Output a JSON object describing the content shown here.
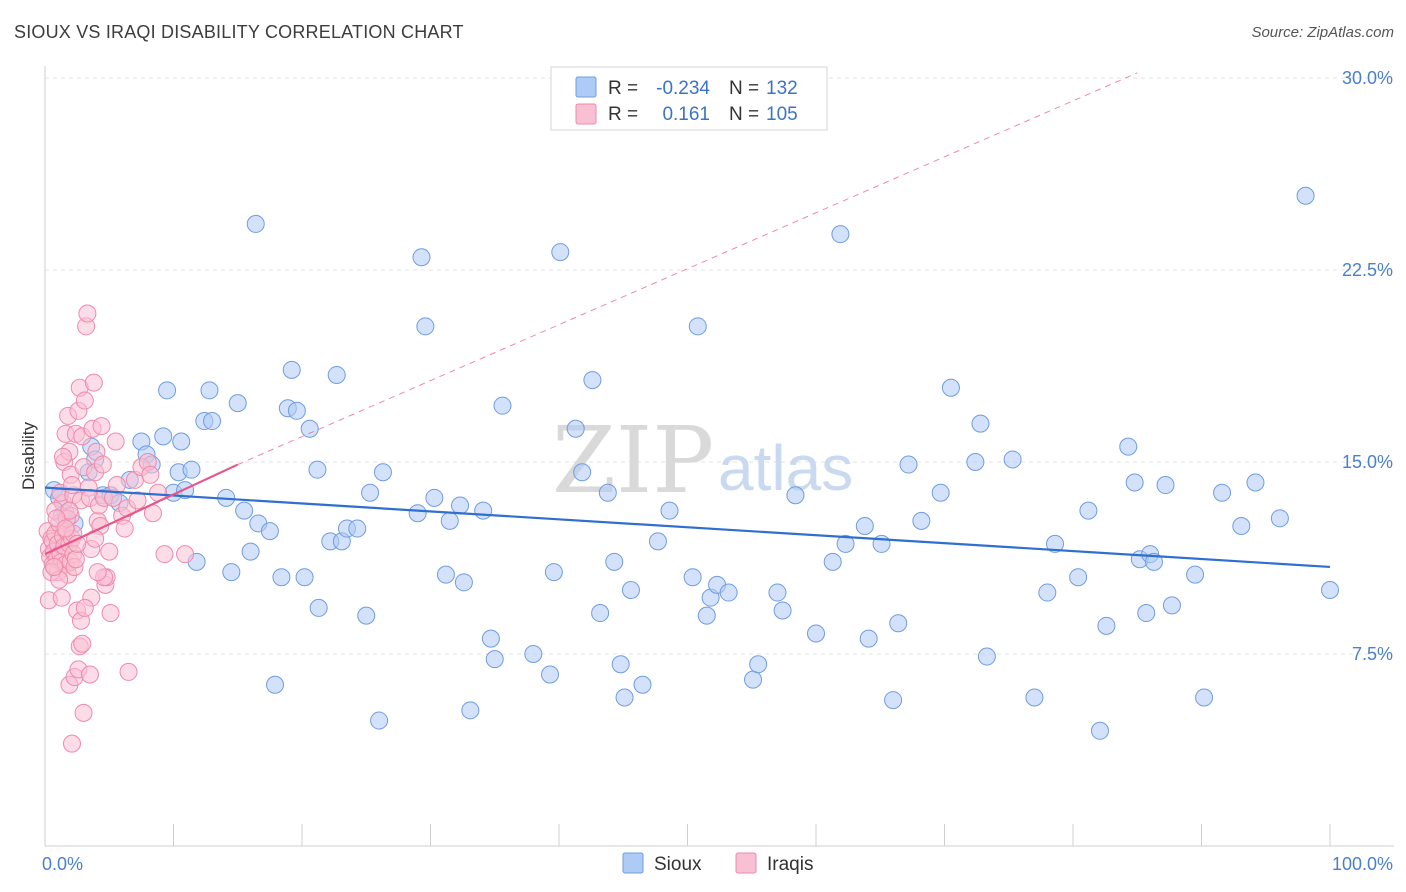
{
  "title": "SIOUX VS IRAQI DISABILITY CORRELATION CHART",
  "source": "Source: ZipAtlas.com",
  "watermark": {
    "zip": "ZIP",
    "atlas": "atlas"
  },
  "legend": {
    "rows": [
      {
        "r_label": "R =",
        "r_value": "-0.234",
        "n_label": "N =",
        "n_value": "132",
        "color": "#aecbf5",
        "stroke": "#6f9de0"
      },
      {
        "r_label": "R =",
        "r_value": "0.161",
        "n_label": "N =",
        "n_value": "105",
        "color": "#f9bfd2",
        "stroke": "#ef8aab"
      }
    ]
  },
  "bottom_legend": [
    {
      "label": "Sioux",
      "color": "#aecbf5",
      "stroke": "#6f9de0"
    },
    {
      "label": "Iraqis",
      "color": "#f9bfd2",
      "stroke": "#ef8aab"
    }
  ],
  "chart_data": {
    "type": "scatter",
    "xlabel": "",
    "ylabel": "Disability",
    "xlim": [
      0,
      100
    ],
    "ylim": [
      0,
      30
    ],
    "x_tick_labels": [
      {
        "value": 0,
        "label": "0.0%"
      },
      {
        "value": 100,
        "label": "100.0%"
      }
    ],
    "y_tick_labels": [
      {
        "value": 7.5,
        "label": "7.5%"
      },
      {
        "value": 15,
        "label": "15.0%"
      },
      {
        "value": 22.5,
        "label": "22.5%"
      },
      {
        "value": 30,
        "label": "30.0%"
      }
    ],
    "grid": true,
    "series": [
      {
        "name": "Sioux",
        "color": "#aecbf5",
        "stroke": "#6f9de0",
        "trend": {
          "x": [
            0,
            100
          ],
          "y": [
            14.0,
            10.9
          ],
          "color": "#2f6fcf"
        },
        "points": [
          [
            0.7,
            13.9
          ],
          [
            1.1,
            13.6
          ],
          [
            1.6,
            13.0
          ],
          [
            2.3,
            12.6
          ],
          [
            3.4,
            14.6
          ],
          [
            3.6,
            15.6
          ],
          [
            3.9,
            15.1
          ],
          [
            4.5,
            13.7
          ],
          [
            5.1,
            13.7
          ],
          [
            5.8,
            13.4
          ],
          [
            6.6,
            14.3
          ],
          [
            7.5,
            15.8
          ],
          [
            7.9,
            15.3
          ],
          [
            8.3,
            14.9
          ],
          [
            9.2,
            16.0
          ],
          [
            9.5,
            17.8
          ],
          [
            10.0,
            13.8
          ],
          [
            10.4,
            14.6
          ],
          [
            10.6,
            15.8
          ],
          [
            11.4,
            14.7
          ],
          [
            11.8,
            11.1
          ],
          [
            12.4,
            16.6
          ],
          [
            12.8,
            17.8
          ],
          [
            13.0,
            16.6
          ],
          [
            14.1,
            13.6
          ],
          [
            14.5,
            10.7
          ],
          [
            15.0,
            17.3
          ],
          [
            15.5,
            13.1
          ],
          [
            16.0,
            11.5
          ],
          [
            16.4,
            24.3
          ],
          [
            16.6,
            12.6
          ],
          [
            17.5,
            12.3
          ],
          [
            17.9,
            6.3
          ],
          [
            18.4,
            10.5
          ],
          [
            18.9,
            17.1
          ],
          [
            19.2,
            18.6
          ],
          [
            19.6,
            17.0
          ],
          [
            20.2,
            10.5
          ],
          [
            20.6,
            16.3
          ],
          [
            21.2,
            14.7
          ],
          [
            21.3,
            9.3
          ],
          [
            22.2,
            11.9
          ],
          [
            22.7,
            18.4
          ],
          [
            23.1,
            11.9
          ],
          [
            23.5,
            12.4
          ],
          [
            24.3,
            12.4
          ],
          [
            25.0,
            9.0
          ],
          [
            25.3,
            13.8
          ],
          [
            26.0,
            4.9
          ],
          [
            26.3,
            14.6
          ],
          [
            29.0,
            13.0
          ],
          [
            29.3,
            23.0
          ],
          [
            29.6,
            20.3
          ],
          [
            30.3,
            13.6
          ],
          [
            31.2,
            10.6
          ],
          [
            31.5,
            12.7
          ],
          [
            32.3,
            13.3
          ],
          [
            32.6,
            10.3
          ],
          [
            33.1,
            5.3
          ],
          [
            34.1,
            13.1
          ],
          [
            34.7,
            8.1
          ],
          [
            35.0,
            7.3
          ],
          [
            35.6,
            17.2
          ],
          [
            38.0,
            7.5
          ],
          [
            39.3,
            6.7
          ],
          [
            39.6,
            10.7
          ],
          [
            40.1,
            23.2
          ],
          [
            41.3,
            16.3
          ],
          [
            41.8,
            14.6
          ],
          [
            42.6,
            18.2
          ],
          [
            43.2,
            9.1
          ],
          [
            43.8,
            13.8
          ],
          [
            44.3,
            11.1
          ],
          [
            44.8,
            7.1
          ],
          [
            45.1,
            5.8
          ],
          [
            45.6,
            10.0
          ],
          [
            46.5,
            6.3
          ],
          [
            47.7,
            11.9
          ],
          [
            48.6,
            13.1
          ],
          [
            50.4,
            10.5
          ],
          [
            50.8,
            20.3
          ],
          [
            51.5,
            9.0
          ],
          [
            51.8,
            9.7
          ],
          [
            52.3,
            10.2
          ],
          [
            53.2,
            9.9
          ],
          [
            55.1,
            6.5
          ],
          [
            55.5,
            7.1
          ],
          [
            57.0,
            9.9
          ],
          [
            57.4,
            9.2
          ],
          [
            58.4,
            13.7
          ],
          [
            60.0,
            8.3
          ],
          [
            61.3,
            11.1
          ],
          [
            61.9,
            23.9
          ],
          [
            62.3,
            11.8
          ],
          [
            63.8,
            12.5
          ],
          [
            64.1,
            8.1
          ],
          [
            65.1,
            11.8
          ],
          [
            66.0,
            5.7
          ],
          [
            66.4,
            8.7
          ],
          [
            67.2,
            14.9
          ],
          [
            68.2,
            12.7
          ],
          [
            69.7,
            13.8
          ],
          [
            70.5,
            17.9
          ],
          [
            72.4,
            15.0
          ],
          [
            72.8,
            16.5
          ],
          [
            73.3,
            7.4
          ],
          [
            75.3,
            15.1
          ],
          [
            77.0,
            5.8
          ],
          [
            78.0,
            9.9
          ],
          [
            78.6,
            11.8
          ],
          [
            80.4,
            10.5
          ],
          [
            81.2,
            13.1
          ],
          [
            82.1,
            4.5
          ],
          [
            82.6,
            8.6
          ],
          [
            84.3,
            15.6
          ],
          [
            84.8,
            14.2
          ],
          [
            85.2,
            11.2
          ],
          [
            85.7,
            9.1
          ],
          [
            86.0,
            11.4
          ],
          [
            86.3,
            11.1
          ],
          [
            87.2,
            14.1
          ],
          [
            87.7,
            9.4
          ],
          [
            89.5,
            10.6
          ],
          [
            90.2,
            5.8
          ],
          [
            91.6,
            13.8
          ],
          [
            93.1,
            12.5
          ],
          [
            94.2,
            14.2
          ],
          [
            96.1,
            12.8
          ],
          [
            98.1,
            25.4
          ],
          [
            100.0,
            10.0
          ],
          [
            1.3,
            12.9
          ],
          [
            10.9,
            13.9
          ]
        ]
      },
      {
        "name": "Iraqis",
        "color": "#f9bfd2",
        "stroke": "#ef8aab",
        "trend": {
          "x": [
            0,
            15
          ],
          "y": [
            11.4,
            14.9
          ],
          "color": "#e7558b"
        },
        "trend_extended": {
          "x": [
            15,
            85
          ],
          "y": [
            14.9,
            30.2
          ]
        },
        "points": [
          [
            0.2,
            12.3
          ],
          [
            0.3,
            11.6
          ],
          [
            0.4,
            11.3
          ],
          [
            0.5,
            12.0
          ],
          [
            0.6,
            11.9
          ],
          [
            0.6,
            11.0
          ],
          [
            0.7,
            11.5
          ],
          [
            0.8,
            12.2
          ],
          [
            0.9,
            11.2
          ],
          [
            1.0,
            10.7
          ],
          [
            1.0,
            11.8
          ],
          [
            1.1,
            12.6
          ],
          [
            1.2,
            11.4
          ],
          [
            1.3,
            11.1
          ],
          [
            1.4,
            12.1
          ],
          [
            1.4,
            13.4
          ],
          [
            1.5,
            11.7
          ],
          [
            1.6,
            11.0
          ],
          [
            1.7,
            12.3
          ],
          [
            1.8,
            10.6
          ],
          [
            1.9,
            11.8
          ],
          [
            2.0,
            11.1
          ],
          [
            2.1,
            12.0
          ],
          [
            2.2,
            11.4
          ],
          [
            2.3,
            10.9
          ],
          [
            2.4,
            11.2
          ],
          [
            0.3,
            9.6
          ],
          [
            0.5,
            10.7
          ],
          [
            0.8,
            13.1
          ],
          [
            1.2,
            13.8
          ],
          [
            1.5,
            15.0
          ],
          [
            1.6,
            16.1
          ],
          [
            1.8,
            16.8
          ],
          [
            1.9,
            15.4
          ],
          [
            2.0,
            14.5
          ],
          [
            2.2,
            13.7
          ],
          [
            2.4,
            16.1
          ],
          [
            2.6,
            17.0
          ],
          [
            2.7,
            17.9
          ],
          [
            2.8,
            13.5
          ],
          [
            2.9,
            16.0
          ],
          [
            3.0,
            14.8
          ],
          [
            3.1,
            17.4
          ],
          [
            3.2,
            20.3
          ],
          [
            3.3,
            20.8
          ],
          [
            3.4,
            14.0
          ],
          [
            3.5,
            13.6
          ],
          [
            3.6,
            11.6
          ],
          [
            3.7,
            16.3
          ],
          [
            3.8,
            18.1
          ],
          [
            3.9,
            14.6
          ],
          [
            4.0,
            15.4
          ],
          [
            4.1,
            12.7
          ],
          [
            4.2,
            13.3
          ],
          [
            4.3,
            12.5
          ],
          [
            4.4,
            16.4
          ],
          [
            4.5,
            14.9
          ],
          [
            4.6,
            13.6
          ],
          [
            4.7,
            10.2
          ],
          [
            4.8,
            10.5
          ],
          [
            5.0,
            11.5
          ],
          [
            5.1,
            9.1
          ],
          [
            5.3,
            13.6
          ],
          [
            5.6,
            14.1
          ],
          [
            6.0,
            12.9
          ],
          [
            6.5,
            6.8
          ],
          [
            7.0,
            14.3
          ],
          [
            7.5,
            14.8
          ],
          [
            8.0,
            15.0
          ],
          [
            8.4,
            13.0
          ],
          [
            8.8,
            13.8
          ],
          [
            9.3,
            11.4
          ],
          [
            10.9,
            11.4
          ],
          [
            1.9,
            6.3
          ],
          [
            2.1,
            4.0
          ],
          [
            2.3,
            6.6
          ],
          [
            2.6,
            6.9
          ],
          [
            2.7,
            7.8
          ],
          [
            2.9,
            7.9
          ],
          [
            3.0,
            5.2
          ],
          [
            3.5,
            6.7
          ],
          [
            3.6,
            9.7
          ],
          [
            2.5,
            9.2
          ],
          [
            2.8,
            8.8
          ],
          [
            3.1,
            9.3
          ],
          [
            2.0,
            12.9
          ],
          [
            2.2,
            12.2
          ],
          [
            1.7,
            12.8
          ],
          [
            1.9,
            13.1
          ],
          [
            4.6,
            10.5
          ],
          [
            5.5,
            15.8
          ],
          [
            6.2,
            12.4
          ],
          [
            6.4,
            13.2
          ],
          [
            7.2,
            13.5
          ],
          [
            8.2,
            14.5
          ],
          [
            1.1,
            10.4
          ],
          [
            1.3,
            9.7
          ],
          [
            0.9,
            12.8
          ],
          [
            2.5,
            11.8
          ],
          [
            3.9,
            12.0
          ],
          [
            4.1,
            10.7
          ],
          [
            0.7,
            10.9
          ],
          [
            1.6,
            12.4
          ],
          [
            2.1,
            14.1
          ],
          [
            1.4,
            15.2
          ]
        ]
      }
    ]
  }
}
